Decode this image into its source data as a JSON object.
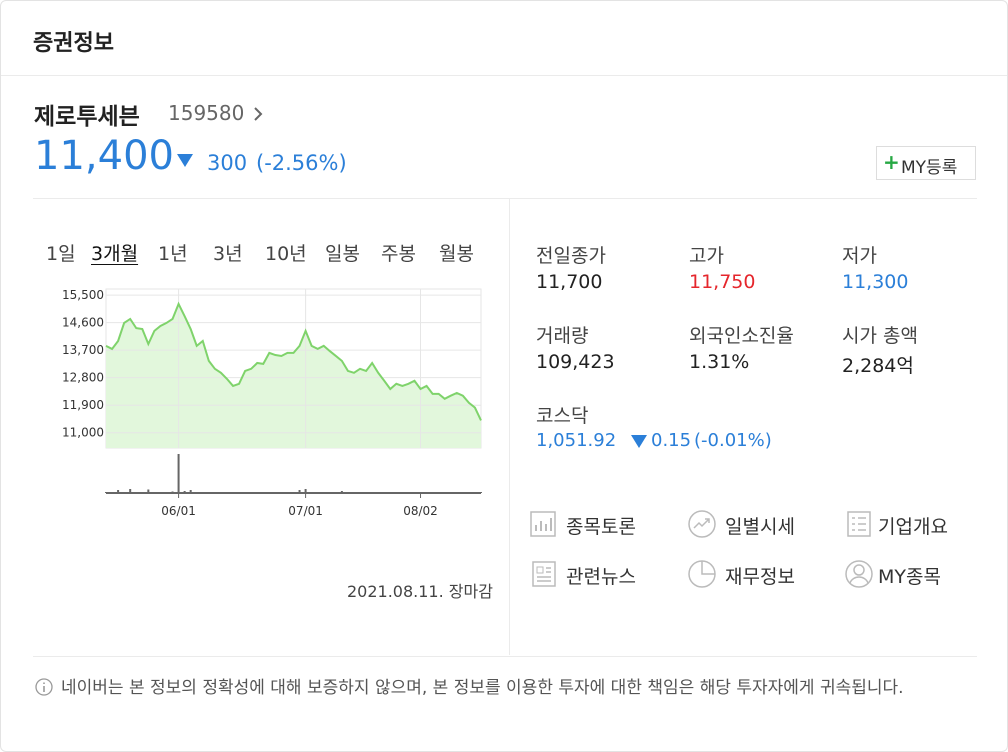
{
  "header": {
    "title": "증권정보"
  },
  "stock": {
    "name": "제로투세븐",
    "code": "159580",
    "price": "11,400",
    "change": "300",
    "change_rate": "(-2.56%)",
    "my_button": "MY등록"
  },
  "tabs": [
    "1일",
    "3개월",
    "1년",
    "3년",
    "10년",
    "일봉",
    "주봉",
    "월봉"
  ],
  "active_tab": 1,
  "chart_data": {
    "type": "line",
    "categories": [
      null,
      null,
      null,
      null,
      null,
      null,
      null,
      null,
      null,
      null,
      null,
      null,
      "06/01",
      null,
      null,
      null,
      null,
      null,
      null,
      null,
      null,
      null,
      null,
      null,
      null,
      null,
      null,
      null,
      null,
      null,
      null,
      null,
      null,
      "07/01",
      null,
      null,
      null,
      null,
      null,
      null,
      null,
      null,
      null,
      null,
      null,
      null,
      null,
      null,
      null,
      null,
      null,
      null,
      "08/02",
      null,
      null,
      null,
      null,
      null,
      null,
      null,
      null,
      null,
      null
    ],
    "series": [
      {
        "color": "#7fd36b",
        "values": [
          13840,
          13740,
          14000,
          14590,
          14720,
          14420,
          14390,
          13900,
          14330,
          14490,
          14590,
          14720,
          15210,
          14810,
          14390,
          13840,
          14000,
          13350,
          13090,
          12960,
          12760,
          12530,
          12600,
          13020,
          13090,
          13280,
          13250,
          13610,
          13540,
          13510,
          13610,
          13610,
          13840,
          14330,
          13840,
          13740,
          13840,
          13670,
          13510,
          13350,
          13020,
          12960,
          13090,
          13020,
          13280,
          12960,
          12700,
          12430,
          12600,
          12530,
          12600,
          12700,
          12430,
          12530,
          12270,
          12270,
          12110,
          12210,
          12300,
          12210,
          11980,
          11820,
          11400
        ]
      },
      {
        "color": "#666666",
        "values": [
          20000,
          15000,
          60000,
          15000,
          80000,
          20000,
          15000,
          70000,
          20000,
          15000,
          20000,
          30000,
          780000,
          40000,
          60000,
          20000,
          15000,
          20000,
          15000,
          15000,
          10000,
          15000,
          10000,
          15000,
          10000,
          10000,
          15000,
          10000,
          15000,
          10000,
          15000,
          10000,
          60000,
          80000,
          20000,
          15000,
          10000,
          15000,
          10000,
          40000,
          10000,
          15000,
          10000,
          10000,
          15000,
          10000,
          10000,
          15000,
          10000,
          10000,
          15000,
          10000,
          10000,
          15000,
          10000,
          10000,
          15000,
          10000,
          10000,
          15000,
          10000,
          10000,
          20000
        ]
      }
    ],
    "ylim": [
      10500,
      15700
    ],
    "yticks": [
      {
        "value": 11000,
        "label": "11,000"
      },
      {
        "value": 11900,
        "label": "11,900"
      },
      {
        "value": 12800,
        "label": "12,800"
      },
      {
        "value": 13700,
        "label": "13,700"
      },
      {
        "value": 14600,
        "label": "14,600"
      },
      {
        "value": 15500,
        "label": "15,500"
      }
    ],
    "y2lim": [
      0,
      800000
    ],
    "grid": true
  },
  "updated": "2021.08.11. 장마감",
  "info": [
    {
      "label": "전일종가",
      "value": "11,700",
      "color": "#222222"
    },
    {
      "label": "고가",
      "value": "11,750",
      "color": "#e5262c"
    },
    {
      "label": "저가",
      "value": "11,300",
      "color": "#2b7fd8"
    },
    {
      "label": "거래량",
      "value": "109,423",
      "color": "#222222"
    },
    {
      "label": "외국인소진율",
      "value": "1.31%",
      "color": "#222222"
    },
    {
      "label": "시가 총액",
      "value": "2,284억",
      "color": "#222222"
    }
  ],
  "index": {
    "label": "코스닥",
    "value": "1,051.92",
    "change": "0.15",
    "change_rate": "(-0.01%)"
  },
  "links": [
    "종목토론",
    "일별시세",
    "기업개요",
    "관련뉴스",
    "재무정보",
    "MY종목"
  ],
  "notice": "네이버는 본 정보의 정확성에 대해 보증하지 않으며, 본 정보를 이용한 투자에 대한 책임은 해당 투자자에게 귀속됩니다."
}
